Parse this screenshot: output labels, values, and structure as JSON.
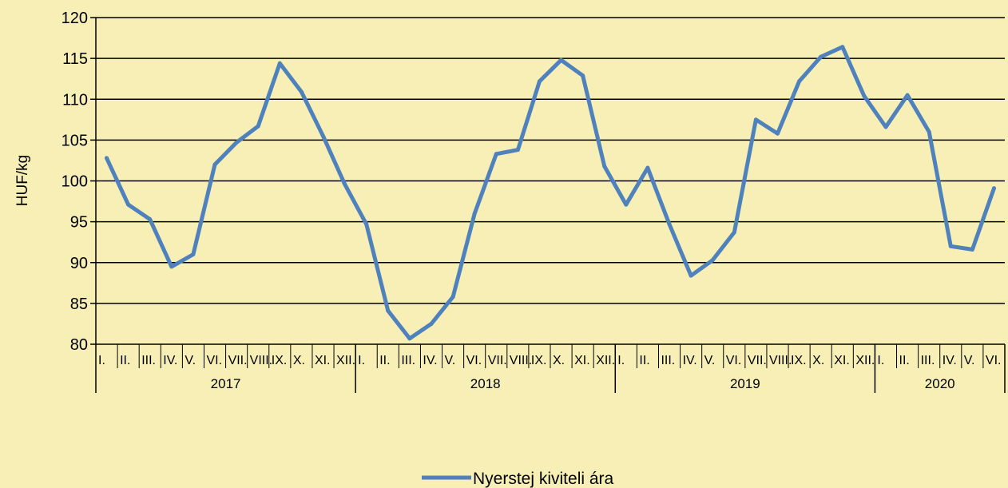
{
  "chart_data": {
    "type": "line",
    "title": "",
    "xlabel": "",
    "ylabel": "HUF/kg",
    "ylim": [
      80,
      120
    ],
    "yticks": [
      80,
      85,
      90,
      95,
      100,
      105,
      110,
      115,
      120
    ],
    "grid": "horizontal",
    "legend_position": "bottom",
    "line_color": "#4f81bd",
    "month_labels": [
      "I.",
      "II.",
      "III.",
      "IV.",
      "V.",
      "VI.",
      "VII.",
      "VIII.",
      "IX.",
      "X.",
      "XI.",
      "XII.",
      "I.",
      "II.",
      "III.",
      "IV.",
      "V.",
      "VI.",
      "VII.",
      "VIII.",
      "IX.",
      "X.",
      "XI.",
      "XII.",
      "I.",
      "II.",
      "III.",
      "IV.",
      "V.",
      "VI.",
      "VII.",
      "VIII.",
      "IX.",
      "X.",
      "XI.",
      "XII.",
      "I.",
      "II.",
      "III.",
      "IV.",
      "V.",
      "VI."
    ],
    "years": [
      {
        "label": "2017",
        "months": 12
      },
      {
        "label": "2018",
        "months": 12
      },
      {
        "label": "2019",
        "months": 12
      },
      {
        "label": "2020",
        "months": 6
      }
    ],
    "series": [
      {
        "name": "Nyerstej kiviteli ára",
        "values": [
          102.8,
          97.1,
          95.3,
          89.5,
          91.0,
          102.0,
          104.7,
          106.7,
          114.4,
          110.9,
          105.5,
          99.6,
          94.7,
          84.1,
          80.7,
          82.5,
          85.8,
          96.0,
          103.3,
          103.8,
          112.2,
          114.8,
          112.9,
          101.8,
          97.1,
          101.6,
          94.7,
          88.4,
          90.3,
          93.7,
          107.5,
          105.8,
          112.2,
          115.2,
          116.4,
          110.4,
          106.6,
          110.5,
          106.0,
          92.0,
          91.6,
          99.1
        ]
      }
    ]
  }
}
